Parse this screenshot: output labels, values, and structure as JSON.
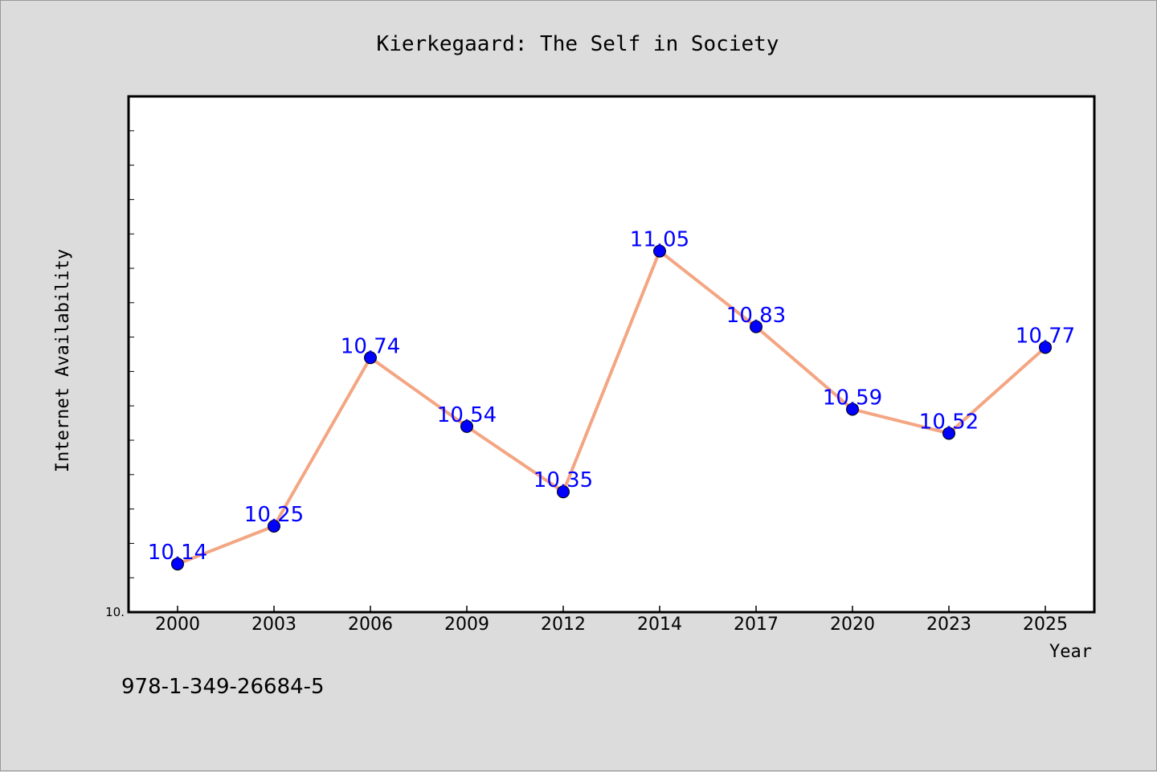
{
  "chart_data": {
    "type": "line",
    "title": "Kierkegaard: The Self in Society",
    "xlabel": "Year",
    "ylabel": "Internet Availability",
    "categories": [
      "2000",
      "2003",
      "2006",
      "2009",
      "2012",
      "2014",
      "2017",
      "2020",
      "2023",
      "2025"
    ],
    "series": [
      {
        "values": [
          10.14,
          10.25,
          10.74,
          10.54,
          10.35,
          11.05,
          10.83,
          10.59,
          10.52,
          10.77
        ]
      }
    ],
    "data_labels": [
      "10.14",
      "10.25",
      "10.74",
      "10.54",
      "10.35",
      "11.05",
      "10.83",
      "10.59",
      "10.52",
      "10.77"
    ],
    "ylim": [
      10.0,
      11.5
    ],
    "y_tick_label": "10.",
    "grid": false,
    "legend": "none",
    "colors": {
      "line": "#f4a582",
      "marker": "#0000ff",
      "label": "#0000ff",
      "background": "#dcdcdc",
      "plot_background": "#ffffff"
    }
  },
  "footer": {
    "isbn": "978-1-349-26684-5"
  }
}
